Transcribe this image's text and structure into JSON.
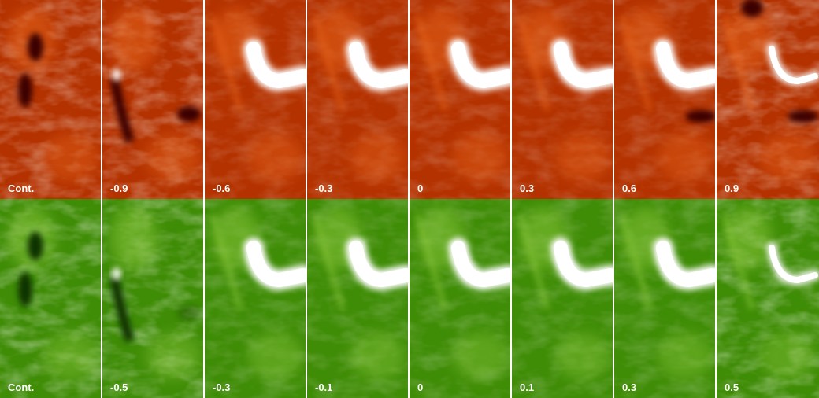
{
  "rows": [
    {
      "labels": [
        "Cont.",
        "-0.9",
        "-0.6",
        "-0.3",
        "0",
        "0.3",
        "0.6",
        "0.9"
      ]
    },
    {
      "labels": [
        "Cont.",
        "-0.5",
        "-0.3",
        "-0.1",
        "0",
        "0.1",
        "0.3",
        "0.5"
      ]
    }
  ]
}
